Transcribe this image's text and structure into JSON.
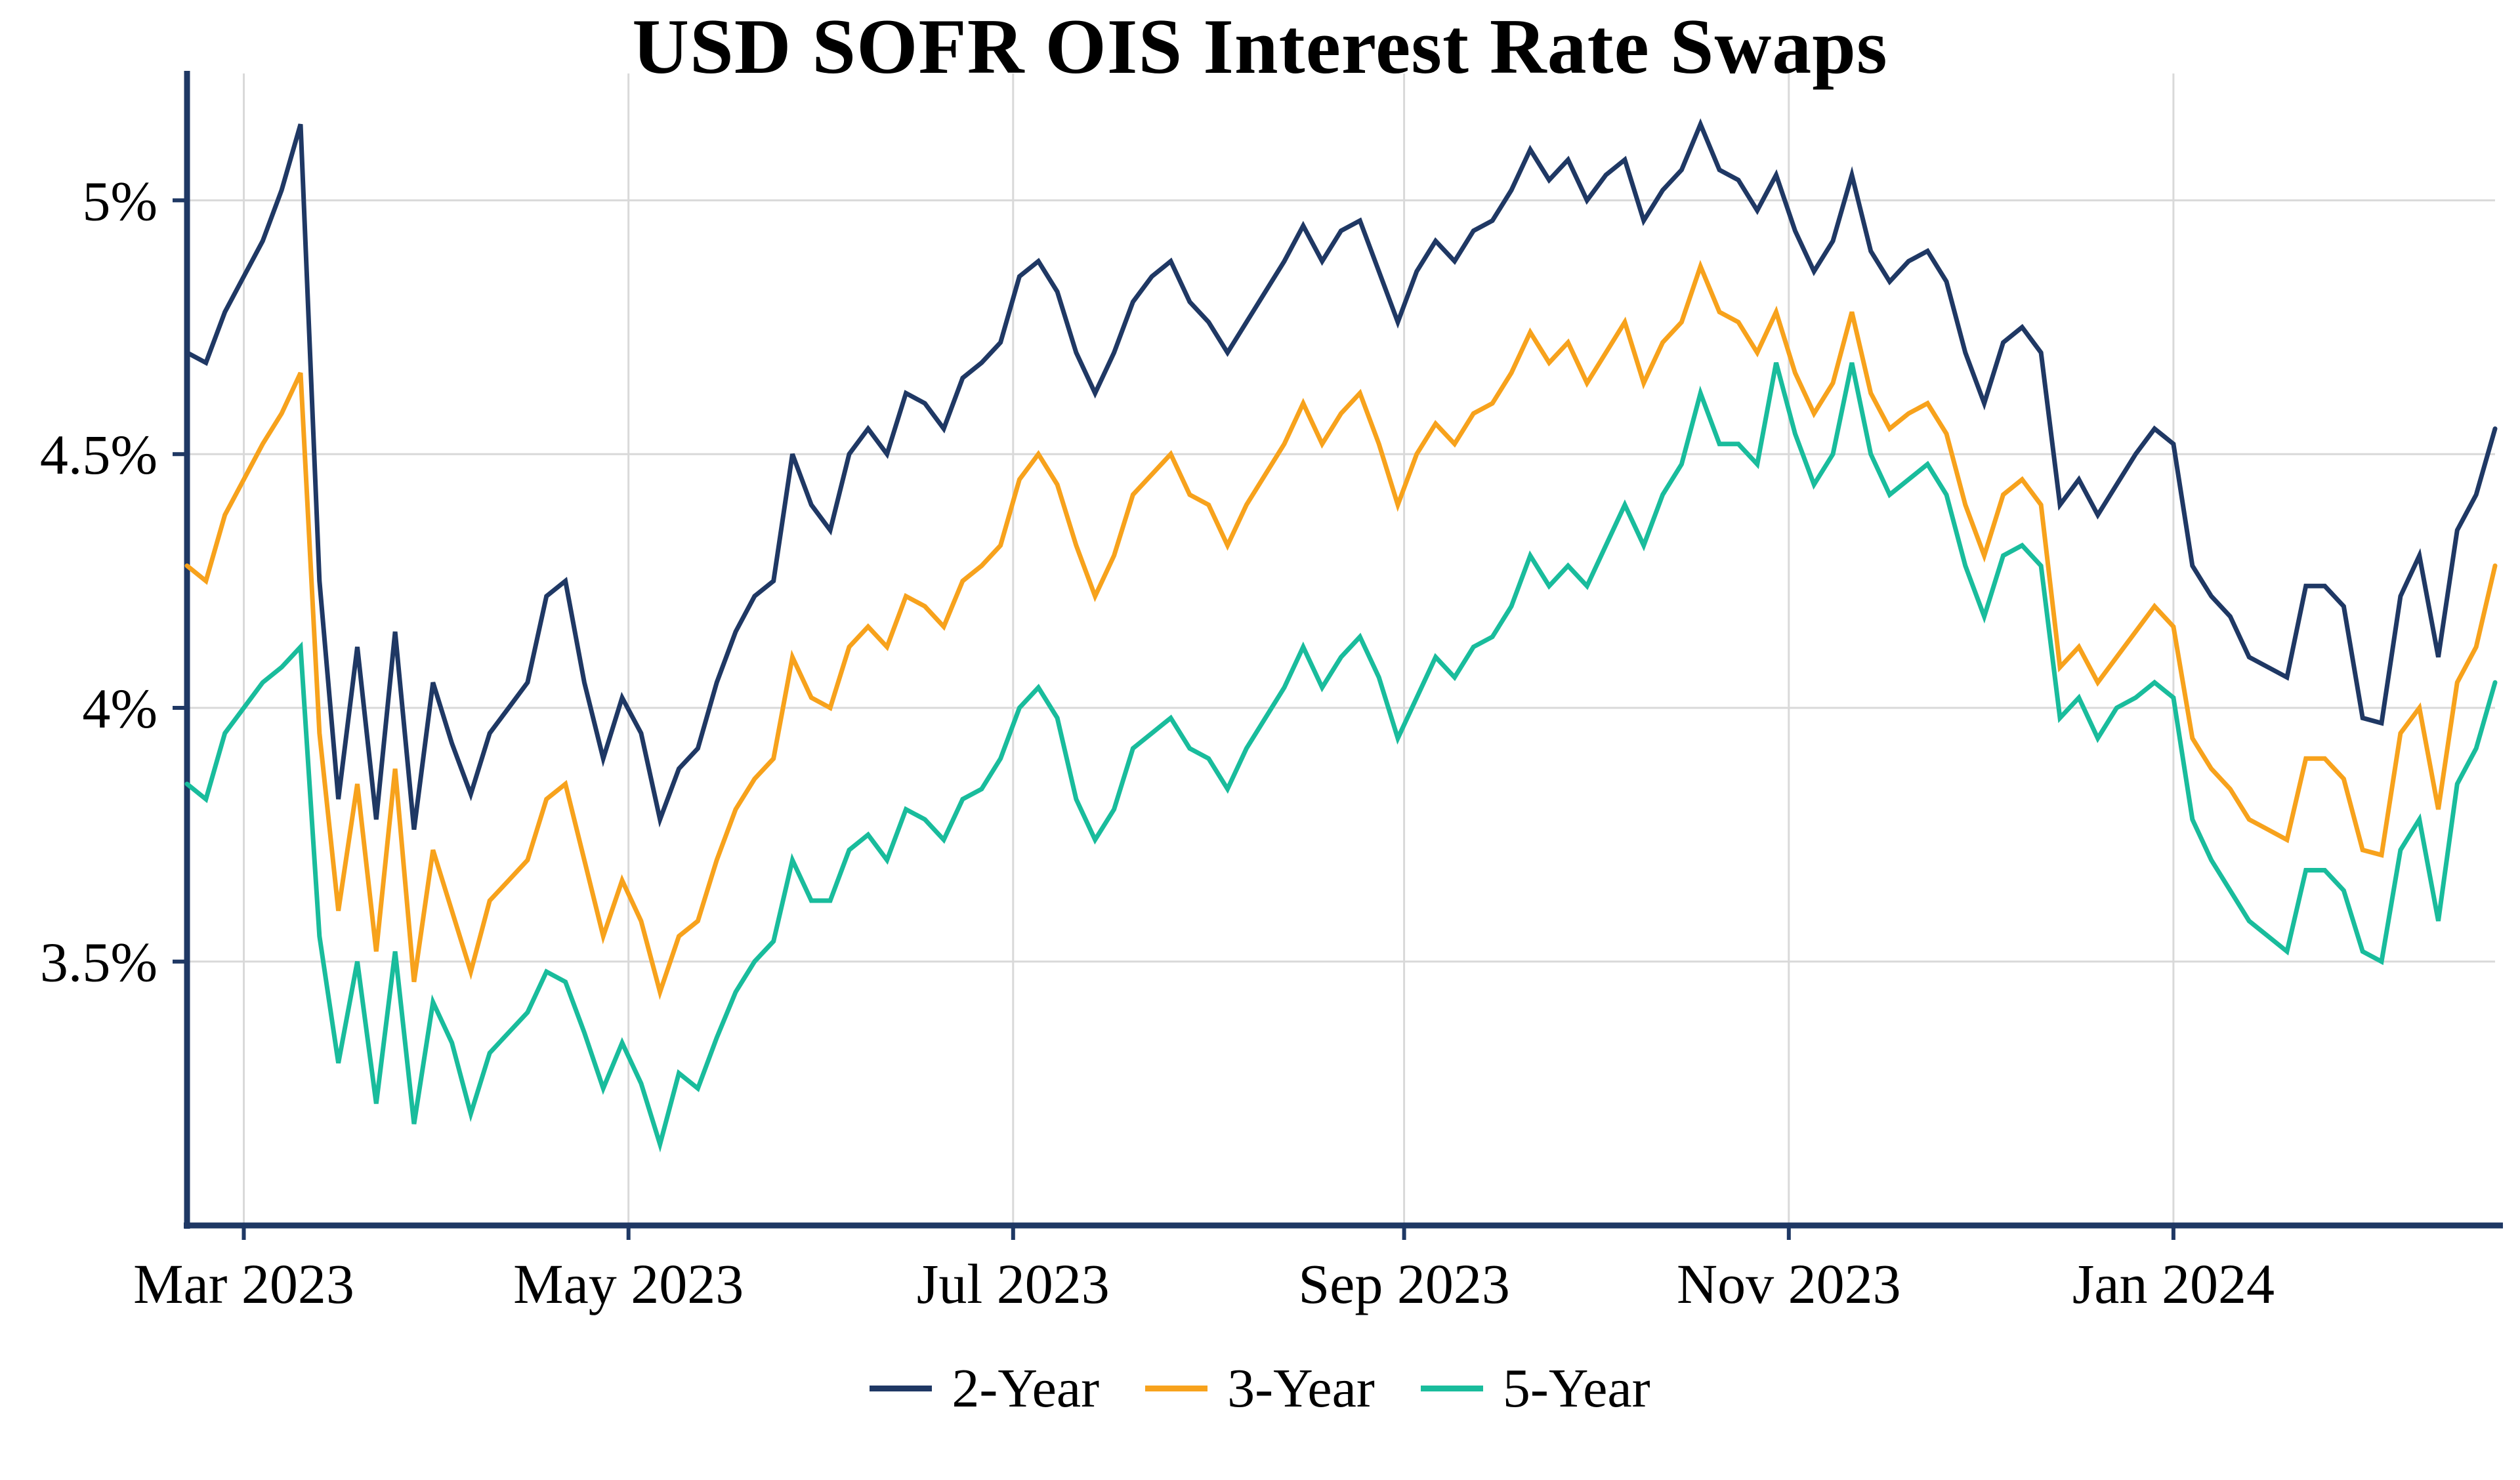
{
  "chart_data": {
    "type": "line",
    "title": "USD SOFR OIS Interest Rate Swaps",
    "xlabel": "",
    "ylabel": "",
    "grid": true,
    "legend_position": "bottom",
    "axis_color": "#1f3864",
    "grid_color": "#d9d9d9",
    "background_color": "#ffffff",
    "y_domain": [
      2.98,
      5.25
    ],
    "y_tick_values": [
      3.5,
      4.0,
      4.5,
      5.0
    ],
    "y_tick_labels": [
      "3.5%",
      "4%",
      "4.5%",
      "5%"
    ],
    "x_tick_labels": [
      "Mar 2023",
      "May 2023",
      "Jul 2023",
      "Sep 2023",
      "Nov 2023",
      "Jan 2024"
    ],
    "x_tick_days": [
      9,
      70,
      131,
      193,
      254,
      315
    ],
    "x_total_days": 366,
    "x_step_days": 3,
    "series": [
      {
        "name": "2-Year",
        "color": "#1f3864",
        "values": [
          4.7,
          4.68,
          4.78,
          4.85,
          4.92,
          5.02,
          5.15,
          4.25,
          3.82,
          4.12,
          3.78,
          4.15,
          3.76,
          4.05,
          3.93,
          3.83,
          3.95,
          4.0,
          4.05,
          4.22,
          4.25,
          4.05,
          3.9,
          4.02,
          3.95,
          3.78,
          3.88,
          3.92,
          4.05,
          4.15,
          4.22,
          4.25,
          4.5,
          4.4,
          4.35,
          4.5,
          4.55,
          4.5,
          4.62,
          4.6,
          4.55,
          4.65,
          4.68,
          4.72,
          4.85,
          4.88,
          4.82,
          4.7,
          4.62,
          4.7,
          4.8,
          4.85,
          4.88,
          4.8,
          4.76,
          4.7,
          4.76,
          4.82,
          4.88,
          4.95,
          4.88,
          4.94,
          4.96,
          4.86,
          4.76,
          4.86,
          4.92,
          4.88,
          4.94,
          4.96,
          5.02,
          5.1,
          5.04,
          5.08,
          5.0,
          5.05,
          5.08,
          4.96,
          5.02,
          5.06,
          5.15,
          5.06,
          5.04,
          4.98,
          5.05,
          4.94,
          4.86,
          4.92,
          5.05,
          4.9,
          4.84,
          4.88,
          4.9,
          4.84,
          4.7,
          4.6,
          4.72,
          4.75,
          4.7,
          4.4,
          4.45,
          4.38,
          4.44,
          4.5,
          4.55,
          4.52,
          4.28,
          4.22,
          4.18,
          4.1,
          4.08,
          4.06,
          4.24,
          4.24,
          4.2,
          3.98,
          3.97,
          4.22,
          4.3,
          4.1,
          4.35,
          4.42,
          4.55
        ]
      },
      {
        "name": "3-Year",
        "color": "#f7a21c",
        "values": [
          4.28,
          4.25,
          4.38,
          4.45,
          4.52,
          4.58,
          4.66,
          3.95,
          3.6,
          3.85,
          3.52,
          3.88,
          3.46,
          3.72,
          3.6,
          3.48,
          3.62,
          3.66,
          3.7,
          3.82,
          3.85,
          3.7,
          3.55,
          3.66,
          3.58,
          3.44,
          3.55,
          3.58,
          3.7,
          3.8,
          3.86,
          3.9,
          4.1,
          4.02,
          4.0,
          4.12,
          4.16,
          4.12,
          4.22,
          4.2,
          4.16,
          4.25,
          4.28,
          4.32,
          4.45,
          4.5,
          4.44,
          4.32,
          4.22,
          4.3,
          4.42,
          4.46,
          4.5,
          4.42,
          4.4,
          4.32,
          4.4,
          4.46,
          4.52,
          4.6,
          4.52,
          4.58,
          4.62,
          4.52,
          4.4,
          4.5,
          4.56,
          4.52,
          4.58,
          4.6,
          4.66,
          4.74,
          4.68,
          4.72,
          4.64,
          4.7,
          4.76,
          4.64,
          4.72,
          4.76,
          4.87,
          4.78,
          4.76,
          4.7,
          4.78,
          4.66,
          4.58,
          4.64,
          4.78,
          4.62,
          4.55,
          4.58,
          4.6,
          4.54,
          4.4,
          4.3,
          4.42,
          4.45,
          4.4,
          4.08,
          4.12,
          4.05,
          4.1,
          4.15,
          4.2,
          4.16,
          3.94,
          3.88,
          3.84,
          3.78,
          3.76,
          3.74,
          3.9,
          3.9,
          3.86,
          3.72,
          3.71,
          3.95,
          4.0,
          3.8,
          4.05,
          4.12,
          4.28
        ]
      },
      {
        "name": "5-Year",
        "color": "#19bc9c",
        "values": [
          3.85,
          3.82,
          3.95,
          4.0,
          4.05,
          4.08,
          4.12,
          3.55,
          3.3,
          3.5,
          3.22,
          3.52,
          3.18,
          3.42,
          3.34,
          3.2,
          3.32,
          3.36,
          3.4,
          3.48,
          3.46,
          3.36,
          3.25,
          3.34,
          3.26,
          3.14,
          3.28,
          3.25,
          3.35,
          3.44,
          3.5,
          3.54,
          3.7,
          3.62,
          3.62,
          3.72,
          3.75,
          3.7,
          3.8,
          3.78,
          3.74,
          3.82,
          3.84,
          3.9,
          4.0,
          4.04,
          3.98,
          3.82,
          3.74,
          3.8,
          3.92,
          3.95,
          3.98,
          3.92,
          3.9,
          3.84,
          3.92,
          3.98,
          4.04,
          4.12,
          4.04,
          4.1,
          4.14,
          4.06,
          3.94,
          4.02,
          4.1,
          4.06,
          4.12,
          4.14,
          4.2,
          4.3,
          4.24,
          4.28,
          4.24,
          4.32,
          4.4,
          4.32,
          4.42,
          4.48,
          4.62,
          4.52,
          4.52,
          4.48,
          4.68,
          4.54,
          4.44,
          4.5,
          4.68,
          4.5,
          4.42,
          4.45,
          4.48,
          4.42,
          4.28,
          4.18,
          4.3,
          4.32,
          4.28,
          3.98,
          4.02,
          3.94,
          4.0,
          4.02,
          4.05,
          4.02,
          3.78,
          3.7,
          3.64,
          3.58,
          3.55,
          3.52,
          3.68,
          3.68,
          3.64,
          3.52,
          3.5,
          3.72,
          3.78,
          3.58,
          3.85,
          3.92,
          4.05
        ]
      }
    ]
  }
}
